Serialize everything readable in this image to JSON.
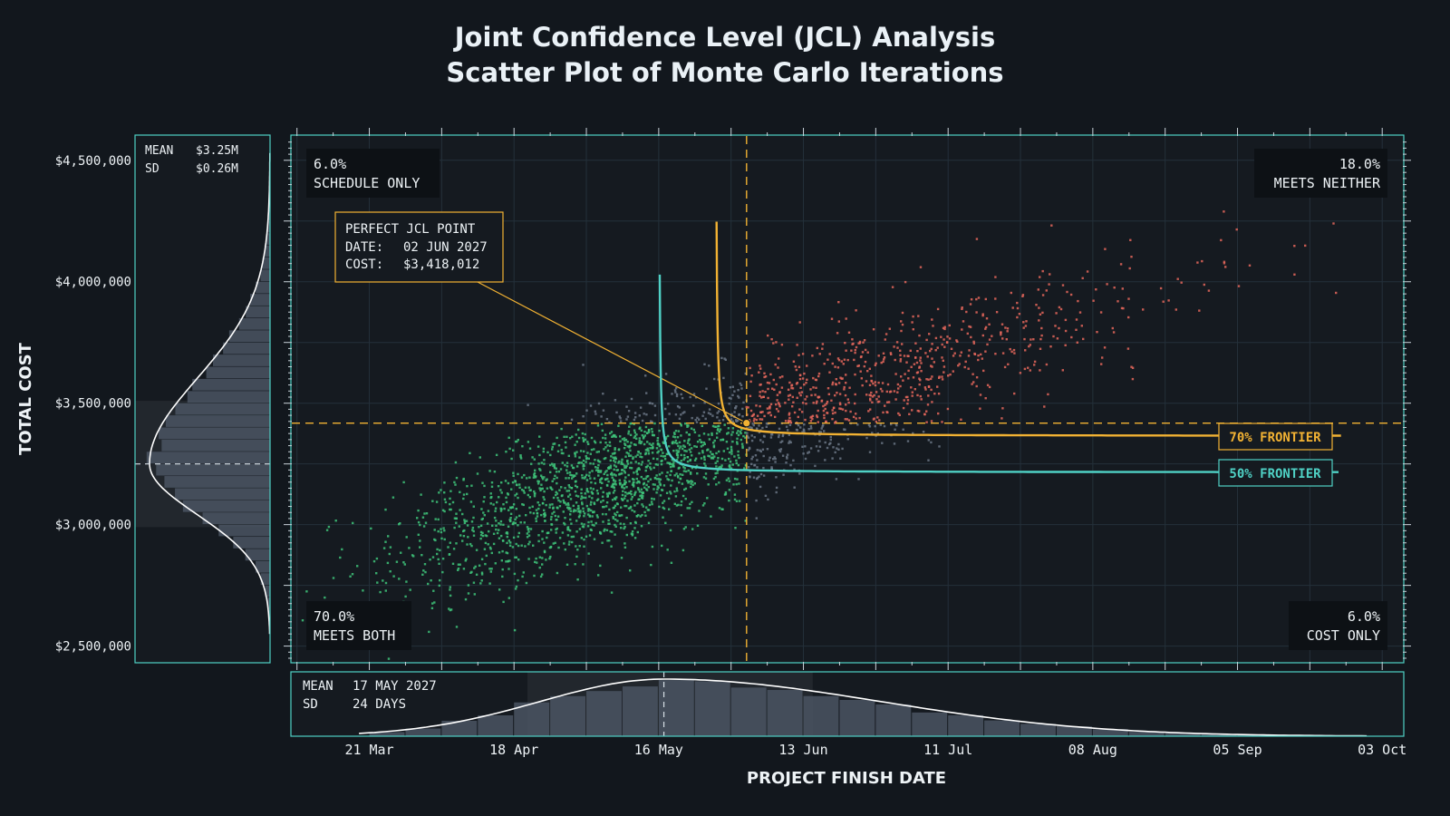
{
  "chart_data": {
    "type": "scatter",
    "title": "Joint Confidence Level (JCL) Analysis",
    "subtitle": "Scatter Plot of Monte Carlo Iterations",
    "xlabel": "PROJECT FINISH DATE",
    "ylabel": "TOTAL COST",
    "x_ticks": [
      "21 Mar",
      "18 Apr",
      "16 May",
      "13 Jun",
      "11 Jul",
      "08 Aug",
      "05 Sep",
      "03 Oct"
    ],
    "x_tick_dates": [
      "2027-03-21",
      "2027-04-18",
      "2027-05-16",
      "2027-06-13",
      "2027-07-11",
      "2027-08-08",
      "2027-09-05",
      "2027-10-03"
    ],
    "xlim": [
      "2027-03-06",
      "2027-10-07"
    ],
    "y_ticks": [
      "$2,500,000",
      "$3,000,000",
      "$3,500,000",
      "$4,000,000",
      "$4,500,000"
    ],
    "y_tick_values": [
      2500000,
      3000000,
      3500000,
      4000000,
      4500000
    ],
    "ylim": [
      2435000,
      4600000
    ],
    "grid": true,
    "quadrants": {
      "schedule_only": {
        "pct": "6.0%",
        "label": "SCHEDULE ONLY"
      },
      "meets_neither": {
        "pct": "18.0%",
        "label": "MEETS NEITHER"
      },
      "meets_both": {
        "pct": "70.0%",
        "label": "MEETS BOTH"
      },
      "cost_only": {
        "pct": "6.0%",
        "label": "COST ONLY"
      }
    },
    "jcl_point": {
      "heading": "PERFECT JCL POINT",
      "date_label": "DATE:",
      "date_value": "02 JUN 2027",
      "date": "2027-06-02",
      "cost_label": "COST:",
      "cost_value": "$3,418,012",
      "cost": 3418012
    },
    "frontiers": [
      {
        "name": "70% FRONTIER",
        "color": "#f2b233",
        "date_asymptote": "2027-05-27",
        "cost_asymptote": 3365000
      },
      {
        "name": "50% FRONTIER",
        "color": "#4fd1c5",
        "date_asymptote": "2027-05-16",
        "cost_asymptote": 3215000
      }
    ],
    "cost_marginal": {
      "mean_label": "MEAN",
      "mean_value": "$3.25M",
      "sd_label": "SD",
      "sd_value": "$0.26M",
      "mean": 3250000,
      "sd": 260000
    },
    "date_marginal": {
      "mean_label": "MEAN",
      "mean_value": "17 MAY 2027",
      "sd_label": "SD",
      "sd_value": "24 DAYS",
      "mean": "2027-05-17",
      "sd_days": 24
    },
    "scatter_summary": {
      "correlation": 0.8,
      "cloud_date_range": [
        "2027-03-21",
        "2027-09-20"
      ],
      "cloud_cost_range": [
        2700000,
        4450000
      ]
    }
  },
  "colors": {
    "background": "#12171d",
    "plot_background": "#151a20",
    "frame": "#4fd1c5",
    "grid": "#24303a",
    "meets_both": "#3ec47a",
    "meets_neither": "#e5675c",
    "other": "#6a7585",
    "jcl": "#f2b233",
    "frontier_50": "#4fd1c5",
    "frontier_70": "#f2b233",
    "marginal_fill": "#4a5563",
    "marginal_curve": "#ffffff"
  }
}
